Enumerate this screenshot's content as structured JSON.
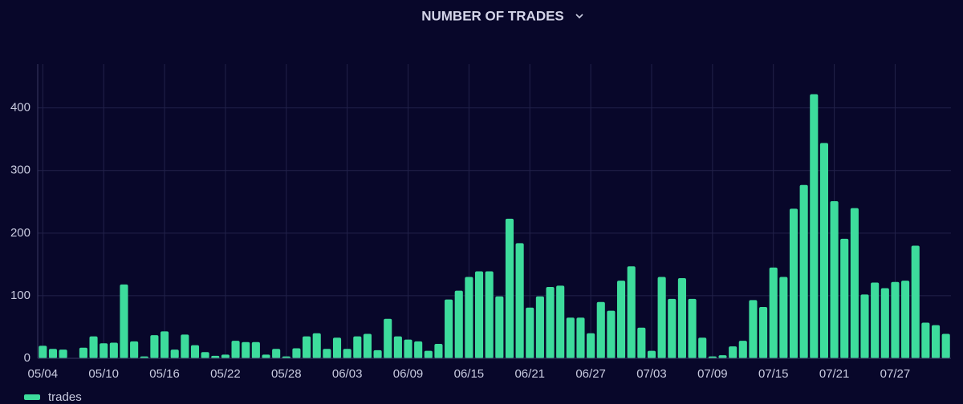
{
  "chart_data": {
    "type": "bar",
    "title": "NUMBER OF TRADES",
    "categories": [
      "05/04",
      null,
      null,
      null,
      null,
      null,
      "05/10",
      null,
      null,
      null,
      null,
      null,
      "05/16",
      null,
      null,
      null,
      null,
      null,
      "05/22",
      null,
      null,
      null,
      null,
      null,
      "05/28",
      null,
      null,
      null,
      null,
      null,
      "06/03",
      null,
      null,
      null,
      null,
      null,
      "06/09",
      null,
      null,
      null,
      null,
      null,
      "06/15",
      null,
      null,
      null,
      null,
      null,
      "06/21",
      null,
      null,
      null,
      null,
      null,
      "06/27",
      null,
      null,
      null,
      null,
      null,
      "07/03",
      null,
      null,
      null,
      null,
      null,
      "07/09",
      null,
      null,
      null,
      null,
      null,
      "07/15",
      null,
      null,
      null,
      null,
      null,
      "07/21",
      null,
      null,
      null,
      null,
      null,
      "07/27",
      null,
      null,
      null,
      null,
      null
    ],
    "series": [
      {
        "name": "trades",
        "color": "#3ddc9c",
        "values": [
          20,
          15,
          14,
          0,
          17,
          35,
          24,
          25,
          118,
          27,
          3,
          37,
          43,
          14,
          38,
          21,
          10,
          4,
          6,
          28,
          26,
          26,
          6,
          15,
          3,
          16,
          35,
          40,
          15,
          33,
          15,
          35,
          39,
          13,
          63,
          35,
          30,
          27,
          12,
          23,
          94,
          108,
          130,
          139,
          139,
          99,
          223,
          184,
          81,
          99,
          114,
          116,
          65,
          65,
          40,
          90,
          76,
          124,
          147,
          49,
          12,
          130,
          95,
          128,
          95,
          33,
          3,
          5,
          19,
          28,
          93,
          82,
          145,
          130,
          239,
          277,
          422,
          344,
          251,
          191,
          240,
          102,
          121,
          112,
          122,
          124,
          180,
          57,
          53,
          39
        ]
      }
    ],
    "ylim": [
      0,
      470
    ],
    "yticks": [
      0,
      100,
      200,
      300,
      400
    ],
    "grid": true,
    "legend": "bottom-left"
  }
}
